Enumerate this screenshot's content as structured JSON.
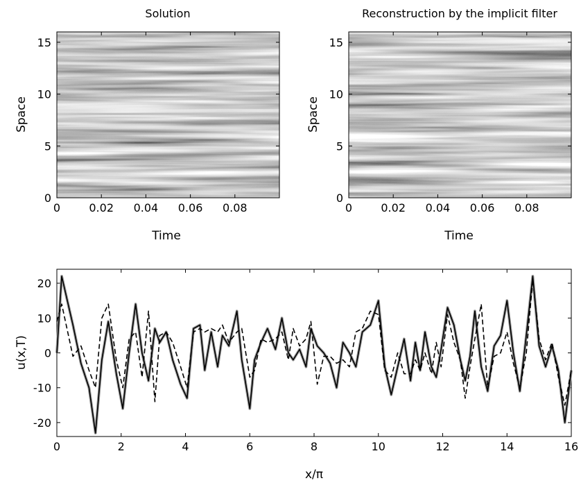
{
  "chart_data": [
    {
      "type": "heatmap",
      "title": "Solution",
      "xlabel": "Time",
      "ylabel": "Space",
      "xlim": [
        0,
        0.1
      ],
      "ylim": [
        0,
        16
      ],
      "xticks": [
        0,
        0.02,
        0.04,
        0.06,
        0.08
      ],
      "xtick_labels": [
        "0",
        "0.02",
        "0.04",
        "0.06",
        "0.08"
      ],
      "yticks": [
        0,
        5,
        10,
        15
      ],
      "ytick_labels": [
        "0",
        "5",
        "10",
        "15"
      ],
      "colormap": "gray",
      "pattern": "horizontal streaks (values nearly constant in time along each space level)"
    },
    {
      "type": "heatmap",
      "title": "Reconstruction by the implicit filter",
      "xlabel": "Time",
      "ylabel": "Space",
      "xlim": [
        0,
        0.1
      ],
      "ylim": [
        0,
        16
      ],
      "xticks": [
        0,
        0.02,
        0.04,
        0.06,
        0.08
      ],
      "xtick_labels": [
        "0",
        "0.02",
        "0.04",
        "0.06",
        "0.08"
      ],
      "yticks": [
        0,
        5,
        10,
        15
      ],
      "ytick_labels": [
        "0",
        "5",
        "10",
        "15"
      ],
      "colormap": "gray",
      "pattern": "horizontal streaks (values nearly constant in time along each space level)"
    },
    {
      "type": "line",
      "title": "",
      "xlabel": "x/π",
      "ylabel": "u(x,T)",
      "xlim": [
        0,
        16
      ],
      "ylim": [
        -24,
        24
      ],
      "xticks": [
        0,
        2,
        4,
        6,
        8,
        10,
        12,
        14,
        16
      ],
      "xtick_labels": [
        "0",
        "2",
        "4",
        "6",
        "8",
        "10",
        "12",
        "14",
        "16"
      ],
      "yticks": [
        -20,
        -10,
        0,
        10,
        20
      ],
      "ytick_labels": [
        "-20",
        "-10",
        "0",
        "10",
        "20"
      ],
      "x": [
        0,
        0.15,
        0.5,
        0.75,
        1.0,
        1.2,
        1.4,
        1.6,
        1.85,
        2.05,
        2.25,
        2.45,
        2.65,
        2.85,
        3.05,
        3.2,
        3.4,
        3.6,
        3.85,
        4.05,
        4.25,
        4.45,
        4.6,
        4.8,
        5.0,
        5.15,
        5.35,
        5.6,
        5.75,
        6.0,
        6.15,
        6.35,
        6.55,
        6.8,
        7.0,
        7.2,
        7.35,
        7.55,
        7.75,
        7.9,
        8.1,
        8.3,
        8.5,
        8.7,
        8.9,
        9.1,
        9.3,
        9.5,
        9.75,
        10.0,
        10.2,
        10.4,
        10.6,
        10.8,
        11.0,
        11.15,
        11.3,
        11.45,
        11.65,
        11.8,
        11.95,
        12.15,
        12.35,
        12.55,
        12.7,
        12.85,
        13.0,
        13.2,
        13.4,
        13.6,
        13.8,
        14.0,
        14.2,
        14.4,
        14.6,
        14.8,
        15.0,
        15.2,
        15.4,
        15.6,
        15.8,
        16.0
      ],
      "series": [
        {
          "values": [
            0,
            22,
            8,
            -3,
            -10,
            -23,
            -2,
            9,
            -6,
            -16,
            0,
            14,
            0,
            -8,
            7,
            3,
            6,
            -2,
            -9,
            -13,
            7,
            8,
            -5,
            6,
            -4,
            5,
            2,
            12,
            -2,
            -16,
            -2,
            3,
            7,
            1,
            10,
            0,
            -2,
            1,
            -4,
            7,
            2,
            0,
            -3,
            -10,
            3,
            0,
            -4,
            6,
            8,
            15,
            -4,
            -12,
            -4,
            4,
            -8,
            3,
            -5,
            6,
            -4,
            -7,
            1,
            13,
            8,
            -2,
            -8,
            -1,
            12,
            -4,
            -11,
            2,
            5,
            15,
            0,
            -11,
            5,
            22,
            2,
            -4,
            2,
            -5,
            -20,
            -5
          ]
        },
        {
          "values": [
            0,
            22,
            8,
            -3,
            -10,
            -23,
            -2,
            9,
            -6,
            -16,
            0,
            14,
            0,
            -8,
            7,
            3,
            6,
            -2,
            -9,
            -13,
            7,
            8,
            -5,
            6,
            -4,
            5,
            2,
            12,
            -2,
            -16,
            -2,
            3,
            7,
            1,
            10,
            0,
            -2,
            1,
            -4,
            7,
            2,
            0,
            -3,
            -10,
            3,
            0,
            -4,
            6,
            8,
            15,
            -4,
            -12,
            -4,
            4,
            -8,
            3,
            -5,
            6,
            -4,
            -7,
            1,
            13,
            8,
            -2,
            -8,
            -1,
            12,
            -4,
            -11,
            2,
            5,
            15,
            0,
            -11,
            5,
            22,
            2,
            -4,
            2,
            -5,
            -20,
            -5
          ]
        },
        {
          "values": [
            9,
            14,
            -1,
            2,
            -5,
            -10,
            10,
            14,
            -2,
            -10,
            4,
            6,
            -7,
            12,
            -14,
            5,
            6,
            3,
            -4,
            -10,
            6,
            7,
            6,
            7,
            6,
            8,
            3,
            6,
            7,
            -7,
            -5,
            4,
            3,
            4,
            6,
            -2,
            7,
            2,
            4,
            9,
            -9,
            -1,
            -1,
            -3,
            -2,
            -4,
            6,
            7,
            12,
            11,
            -5,
            -7,
            0,
            -6,
            -6,
            -2,
            -5,
            0,
            -6,
            3,
            -4,
            11,
            3,
            -2,
            -13,
            -4,
            4,
            14,
            -10,
            -1,
            0,
            6,
            -3,
            -10,
            0,
            21,
            4,
            -2,
            3,
            -7,
            -15,
            -5
          ]
        }
      ],
      "series_styles": [
        {
          "color": "#a0a0a0",
          "dash": "solid"
        },
        {
          "color": "#000000",
          "dash": "solid"
        },
        {
          "color": "#000000",
          "dash": "dashed"
        }
      ]
    }
  ]
}
